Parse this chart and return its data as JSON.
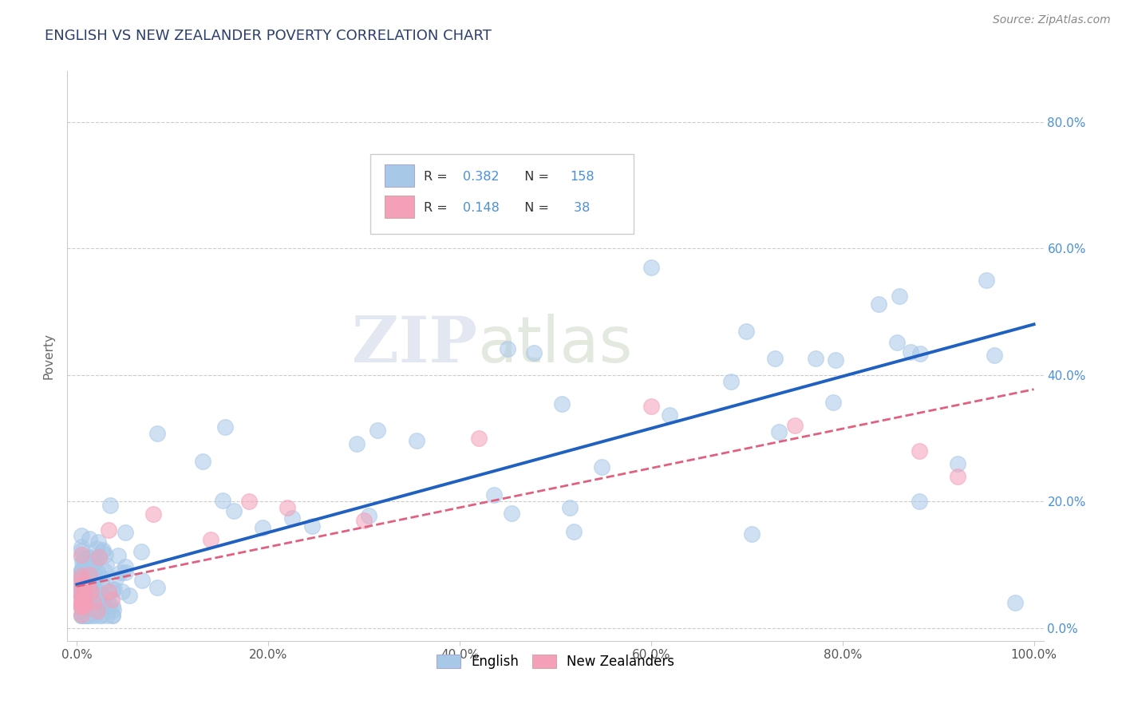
{
  "title": "ENGLISH VS NEW ZEALANDER POVERTY CORRELATION CHART",
  "source_text": "Source: ZipAtlas.com",
  "ylabel": "Poverty",
  "xlim": [
    -0.01,
    1.01
  ],
  "ylim": [
    -0.02,
    0.88
  ],
  "x_ticks": [
    0.0,
    0.2,
    0.4,
    0.6,
    0.8,
    1.0
  ],
  "x_tick_labels": [
    "0.0%",
    "20.0%",
    "40.0%",
    "60.0%",
    "80.0%",
    "100.0%"
  ],
  "y_ticks": [
    0.0,
    0.2,
    0.4,
    0.6,
    0.8
  ],
  "y_tick_labels": [
    "0.0%",
    "20.0%",
    "40.0%",
    "60.0%",
    "80.0%"
  ],
  "english_R": 0.382,
  "english_N": 158,
  "nz_R": 0.148,
  "nz_N": 38,
  "english_color": "#a8c8e8",
  "nz_color": "#f4a0b8",
  "english_line_color": "#2060c0",
  "nz_line_color": "#e06080",
  "title_color": "#2c3e6b",
  "label_color": "#4a90d9",
  "watermark_zip": "ZIP",
  "watermark_atlas": "atlas",
  "background_color": "#ffffff",
  "grid_color": "#cccccc"
}
